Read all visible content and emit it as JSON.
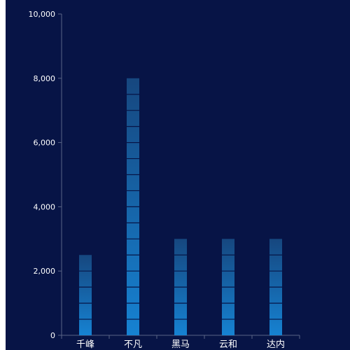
{
  "colors": {
    "background": "#071446",
    "bar_top": "#16477f",
    "bar_bottom": "#1682d2",
    "bar_separator": "#071446",
    "axis_line": "#5a6486",
    "label": "#ffffff"
  },
  "chart_data": {
    "type": "bar",
    "categories": [
      "千峰",
      "不凡",
      "黑马",
      "云和",
      "达内"
    ],
    "values": [
      2500,
      8000,
      3000,
      3000,
      3000
    ],
    "ylim": [
      0,
      10000
    ],
    "yticks": [
      0,
      2000,
      4000,
      6000,
      8000,
      10000
    ],
    "ytick_labels": [
      "0",
      "2,000",
      "4,000",
      "6,000",
      "8,000",
      "10,000"
    ],
    "title": "",
    "xlabel": "",
    "ylabel": "",
    "grid": false,
    "bar_style": "segmented-gradient",
    "segment_value": 500
  }
}
